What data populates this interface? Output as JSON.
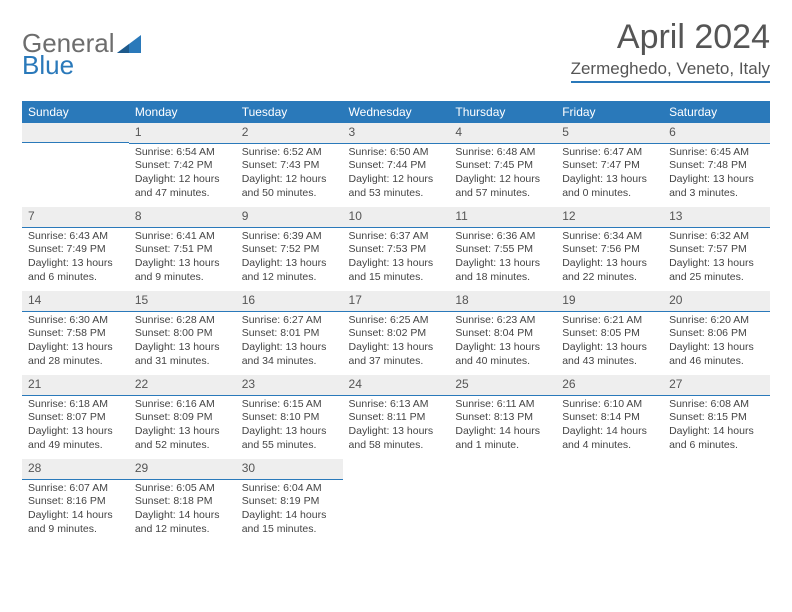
{
  "brand": {
    "part1": "General",
    "part2": "Blue"
  },
  "title": "April 2024",
  "location": "Zermeghedo, Veneto, Italy",
  "colors": {
    "accent": "#2a79ba",
    "header_text": "#ffffff",
    "daynum_bg": "#eeeeee",
    "text": "#444444"
  },
  "weekdays": [
    "Sunday",
    "Monday",
    "Tuesday",
    "Wednesday",
    "Thursday",
    "Friday",
    "Saturday"
  ],
  "layout": {
    "start_blank": 1,
    "days_in_month": 30
  },
  "days": {
    "1": {
      "sr": "6:54 AM",
      "ss": "7:42 PM",
      "dl": "12 hours and 47 minutes."
    },
    "2": {
      "sr": "6:52 AM",
      "ss": "7:43 PM",
      "dl": "12 hours and 50 minutes."
    },
    "3": {
      "sr": "6:50 AM",
      "ss": "7:44 PM",
      "dl": "12 hours and 53 minutes."
    },
    "4": {
      "sr": "6:48 AM",
      "ss": "7:45 PM",
      "dl": "12 hours and 57 minutes."
    },
    "5": {
      "sr": "6:47 AM",
      "ss": "7:47 PM",
      "dl": "13 hours and 0 minutes."
    },
    "6": {
      "sr": "6:45 AM",
      "ss": "7:48 PM",
      "dl": "13 hours and 3 minutes."
    },
    "7": {
      "sr": "6:43 AM",
      "ss": "7:49 PM",
      "dl": "13 hours and 6 minutes."
    },
    "8": {
      "sr": "6:41 AM",
      "ss": "7:51 PM",
      "dl": "13 hours and 9 minutes."
    },
    "9": {
      "sr": "6:39 AM",
      "ss": "7:52 PM",
      "dl": "13 hours and 12 minutes."
    },
    "10": {
      "sr": "6:37 AM",
      "ss": "7:53 PM",
      "dl": "13 hours and 15 minutes."
    },
    "11": {
      "sr": "6:36 AM",
      "ss": "7:55 PM",
      "dl": "13 hours and 18 minutes."
    },
    "12": {
      "sr": "6:34 AM",
      "ss": "7:56 PM",
      "dl": "13 hours and 22 minutes."
    },
    "13": {
      "sr": "6:32 AM",
      "ss": "7:57 PM",
      "dl": "13 hours and 25 minutes."
    },
    "14": {
      "sr": "6:30 AM",
      "ss": "7:58 PM",
      "dl": "13 hours and 28 minutes."
    },
    "15": {
      "sr": "6:28 AM",
      "ss": "8:00 PM",
      "dl": "13 hours and 31 minutes."
    },
    "16": {
      "sr": "6:27 AM",
      "ss": "8:01 PM",
      "dl": "13 hours and 34 minutes."
    },
    "17": {
      "sr": "6:25 AM",
      "ss": "8:02 PM",
      "dl": "13 hours and 37 minutes."
    },
    "18": {
      "sr": "6:23 AM",
      "ss": "8:04 PM",
      "dl": "13 hours and 40 minutes."
    },
    "19": {
      "sr": "6:21 AM",
      "ss": "8:05 PM",
      "dl": "13 hours and 43 minutes."
    },
    "20": {
      "sr": "6:20 AM",
      "ss": "8:06 PM",
      "dl": "13 hours and 46 minutes."
    },
    "21": {
      "sr": "6:18 AM",
      "ss": "8:07 PM",
      "dl": "13 hours and 49 minutes."
    },
    "22": {
      "sr": "6:16 AM",
      "ss": "8:09 PM",
      "dl": "13 hours and 52 minutes."
    },
    "23": {
      "sr": "6:15 AM",
      "ss": "8:10 PM",
      "dl": "13 hours and 55 minutes."
    },
    "24": {
      "sr": "6:13 AM",
      "ss": "8:11 PM",
      "dl": "13 hours and 58 minutes."
    },
    "25": {
      "sr": "6:11 AM",
      "ss": "8:13 PM",
      "dl": "14 hours and 1 minute."
    },
    "26": {
      "sr": "6:10 AM",
      "ss": "8:14 PM",
      "dl": "14 hours and 4 minutes."
    },
    "27": {
      "sr": "6:08 AM",
      "ss": "8:15 PM",
      "dl": "14 hours and 6 minutes."
    },
    "28": {
      "sr": "6:07 AM",
      "ss": "8:16 PM",
      "dl": "14 hours and 9 minutes."
    },
    "29": {
      "sr": "6:05 AM",
      "ss": "8:18 PM",
      "dl": "14 hours and 12 minutes."
    },
    "30": {
      "sr": "6:04 AM",
      "ss": "8:19 PM",
      "dl": "14 hours and 15 minutes."
    }
  },
  "labels": {
    "sunrise": "Sunrise: ",
    "sunset": "Sunset: ",
    "daylight": "Daylight: "
  }
}
